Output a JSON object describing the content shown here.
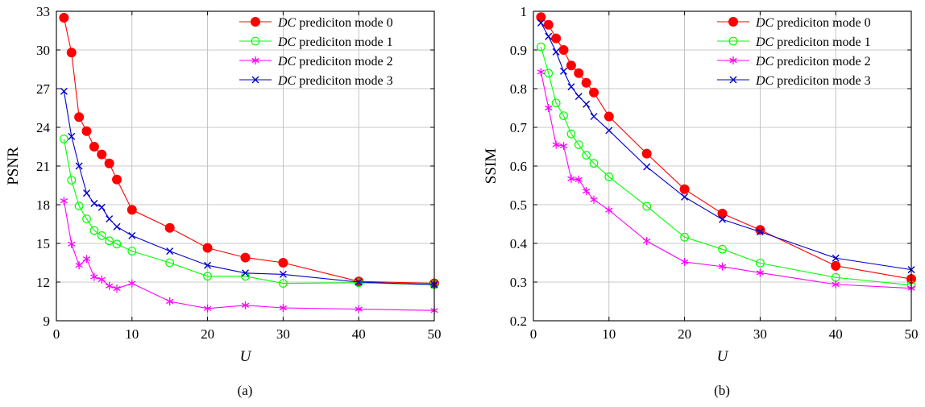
{
  "chart_data": [
    {
      "type": "line",
      "caption": "(a)",
      "xlabel": "U",
      "ylabel": "PSNR",
      "xlim": [
        0,
        50
      ],
      "ylim": [
        9,
        33
      ],
      "xticks": [
        0,
        10,
        20,
        30,
        40,
        50
      ],
      "yticks": [
        9,
        12,
        15,
        18,
        21,
        24,
        27,
        30,
        33
      ],
      "grid": true,
      "legend_position": "top-right",
      "x": [
        1,
        2,
        3,
        4,
        5,
        6,
        7,
        8,
        10,
        15,
        20,
        25,
        30,
        40,
        50
      ],
      "series": [
        {
          "name_prefix": "DC",
          "name_suffix": " prediciton mode 0",
          "color": "#ff0000",
          "marker": "filled-circle",
          "values": [
            32.5,
            29.8,
            24.8,
            23.7,
            22.5,
            21.9,
            21.2,
            19.95,
            17.6,
            16.2,
            14.65,
            13.9,
            13.5,
            12.05,
            11.9
          ]
        },
        {
          "name_prefix": "DC",
          "name_suffix": " prediciton mode 1",
          "color": "#00ff00",
          "marker": "open-circle",
          "values": [
            23.1,
            19.9,
            17.9,
            16.9,
            16.0,
            15.6,
            15.2,
            14.95,
            14.4,
            13.5,
            12.45,
            12.45,
            11.9,
            11.95,
            11.8
          ]
        },
        {
          "name_prefix": "DC",
          "name_suffix": " prediciton mode 2",
          "color": "#ff00ff",
          "marker": "asterisk",
          "values": [
            18.3,
            14.95,
            13.3,
            13.8,
            12.4,
            12.2,
            11.7,
            11.5,
            11.9,
            10.5,
            9.95,
            10.2,
            10.0,
            9.9,
            9.8
          ]
        },
        {
          "name_prefix": "DC",
          "name_suffix": " prediciton mode 3",
          "color": "#0000cc",
          "marker": "x",
          "values": [
            26.8,
            23.3,
            21.0,
            18.9,
            18.1,
            17.8,
            16.9,
            16.3,
            15.6,
            14.4,
            13.3,
            12.7,
            12.6,
            12.0,
            11.8
          ]
        }
      ]
    },
    {
      "type": "line",
      "caption": "(b)",
      "xlabel": "U",
      "ylabel": "SSIM",
      "xlim": [
        0,
        50
      ],
      "ylim": [
        0.2,
        1.0
      ],
      "xticks": [
        0,
        10,
        20,
        30,
        40,
        50
      ],
      "yticks": [
        0.2,
        0.3,
        0.4,
        0.5,
        0.6,
        0.7,
        0.8,
        0.9,
        1
      ],
      "grid": true,
      "legend_position": "top-right",
      "x": [
        1,
        2,
        3,
        4,
        5,
        6,
        7,
        8,
        10,
        15,
        20,
        25,
        30,
        40,
        50
      ],
      "series": [
        {
          "name_prefix": "DC",
          "name_suffix": " prediciton mode 0",
          "color": "#ff0000",
          "marker": "filled-circle",
          "values": [
            0.985,
            0.965,
            0.93,
            0.9,
            0.86,
            0.84,
            0.815,
            0.79,
            0.728,
            0.632,
            0.54,
            0.477,
            0.435,
            0.342,
            0.308
          ]
        },
        {
          "name_prefix": "DC",
          "name_suffix": " prediciton mode 1",
          "color": "#00ff00",
          "marker": "open-circle",
          "values": [
            0.908,
            0.84,
            0.763,
            0.73,
            0.683,
            0.655,
            0.628,
            0.607,
            0.572,
            0.496,
            0.416,
            0.385,
            0.349,
            0.312,
            0.292
          ]
        },
        {
          "name_prefix": "DC",
          "name_suffix": " prediciton mode 2",
          "color": "#ff00ff",
          "marker": "asterisk",
          "values": [
            0.843,
            0.75,
            0.655,
            0.652,
            0.567,
            0.565,
            0.535,
            0.513,
            0.486,
            0.406,
            0.352,
            0.34,
            0.324,
            0.294,
            0.284
          ]
        },
        {
          "name_prefix": "DC",
          "name_suffix": " prediciton mode 3",
          "color": "#0000cc",
          "marker": "x",
          "values": [
            0.97,
            0.935,
            0.895,
            0.845,
            0.805,
            0.78,
            0.76,
            0.728,
            0.692,
            0.598,
            0.52,
            0.462,
            0.43,
            0.362,
            0.332
          ]
        }
      ]
    }
  ]
}
